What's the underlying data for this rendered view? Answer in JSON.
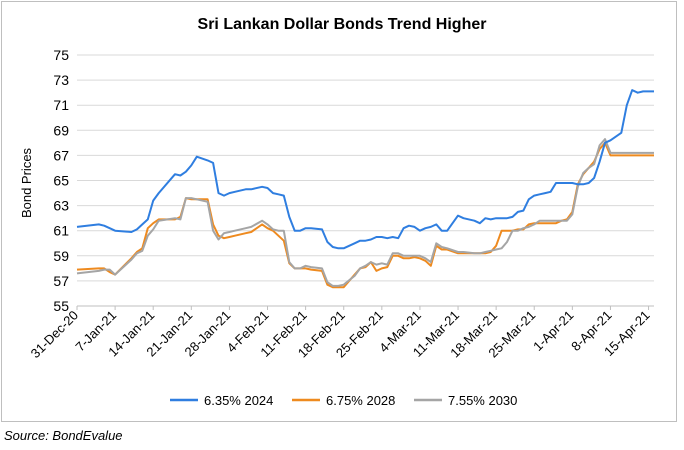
{
  "source_text": "Source: BondEvalue",
  "chart_data": {
    "type": "line",
    "title": "Sri Lankan Dollar Bonds Trend Higher",
    "xlabel": "",
    "ylabel": "Bond Prices",
    "ylim": [
      55,
      75
    ],
    "yticks": [
      55,
      57,
      59,
      61,
      63,
      65,
      67,
      69,
      71,
      73,
      75
    ],
    "categories": [
      "31-Dec-20",
      "7-Jan-21",
      "14-Jan-21",
      "21-Jan-21",
      "28-Jan-21",
      "4-Feb-21",
      "11-Feb-21",
      "18-Feb-21",
      "25-Feb-21",
      "4-Mar-21",
      "11-Mar-21",
      "18-Mar-21",
      "25-Mar-21",
      "1-Apr-21",
      "8-Apr-21",
      "15-Apr-21"
    ],
    "grid": true,
    "legend_position": "bottom",
    "series": [
      {
        "name": "6.35% 2024",
        "color": "#2f7ee0",
        "x": [
          0,
          4,
          5,
          6,
          7,
          10,
          11,
          12,
          13,
          14,
          15,
          18,
          19,
          20,
          21,
          22,
          24,
          25,
          26,
          27,
          28,
          29,
          31,
          32,
          34,
          35,
          36,
          37,
          38,
          39,
          40,
          41,
          42,
          43,
          45,
          46,
          47,
          48,
          49,
          51,
          52,
          53,
          54,
          55,
          56,
          57,
          58,
          59,
          60,
          61,
          62,
          63,
          64,
          65,
          66,
          67,
          68,
          70,
          71,
          73,
          74,
          75,
          76,
          77,
          78,
          79,
          80,
          81,
          82,
          83,
          84,
          85,
          86,
          87,
          88,
          89,
          90,
          91,
          92,
          93,
          94,
          95,
          96,
          97,
          98,
          100,
          101,
          102,
          103,
          104,
          105,
          106
        ],
        "values": [
          61.3,
          61.5,
          61.4,
          61.2,
          61.0,
          60.9,
          61.1,
          61.5,
          61.9,
          63.4,
          64.0,
          65.5,
          65.4,
          65.7,
          66.2,
          66.9,
          66.6,
          66.4,
          64.0,
          63.8,
          64.0,
          64.1,
          64.3,
          64.3,
          64.5,
          64.4,
          64.0,
          63.9,
          63.8,
          62.1,
          61.0,
          61.0,
          61.2,
          61.2,
          61.1,
          60.1,
          59.7,
          59.6,
          59.6,
          60.0,
          60.2,
          60.2,
          60.3,
          60.5,
          60.5,
          60.4,
          60.5,
          60.4,
          61.2,
          61.4,
          61.3,
          61.0,
          61.2,
          61.3,
          61.5,
          61.0,
          61.0,
          62.2,
          62.0,
          61.8,
          61.6,
          62.0,
          61.9,
          62.0,
          62.0,
          62.0,
          62.1,
          62.5,
          62.6,
          63.5,
          63.8,
          63.9,
          64.0,
          64.1,
          64.8,
          64.8,
          64.8,
          64.8,
          64.7,
          64.7,
          64.8,
          65.2,
          66.5,
          68.0,
          68.2,
          68.8,
          71.0,
          72.2,
          72.0,
          72.1,
          72.1,
          72.1
        ]
      },
      {
        "name": "6.75% 2028",
        "color": "#ee8a1f",
        "x": [
          0,
          4,
          5,
          6,
          7,
          10,
          11,
          12,
          13,
          14,
          15,
          18,
          19,
          20,
          21,
          22,
          24,
          25,
          26,
          27,
          28,
          29,
          31,
          32,
          34,
          35,
          36,
          37,
          38,
          39,
          40,
          41,
          42,
          43,
          45,
          46,
          47,
          48,
          49,
          51,
          52,
          53,
          54,
          55,
          56,
          57,
          58,
          59,
          60,
          61,
          62,
          63,
          64,
          65,
          66,
          67,
          68,
          70,
          71,
          73,
          74,
          75,
          76,
          77,
          78,
          79,
          80,
          81,
          82,
          83,
          84,
          85,
          86,
          87,
          88,
          89,
          90,
          91,
          92,
          93,
          94,
          95,
          96,
          97,
          98,
          100,
          101,
          102,
          103,
          104,
          105,
          106
        ],
        "values": [
          57.9,
          58.0,
          58.0,
          57.7,
          57.5,
          58.8,
          59.3,
          59.6,
          61.2,
          61.6,
          61.9,
          61.9,
          62.1,
          63.6,
          63.5,
          63.5,
          63.5,
          61.5,
          60.6,
          60.4,
          60.5,
          60.6,
          60.8,
          60.9,
          61.5,
          61.2,
          61.0,
          60.6,
          60.2,
          58.4,
          58.0,
          58.0,
          58.0,
          57.9,
          57.8,
          56.7,
          56.5,
          56.5,
          56.5,
          57.5,
          58.0,
          58.1,
          58.5,
          57.8,
          58.0,
          58.1,
          59.0,
          59.0,
          58.8,
          58.8,
          58.9,
          58.8,
          58.6,
          58.2,
          59.8,
          59.5,
          59.5,
          59.2,
          59.2,
          59.2,
          59.2,
          59.2,
          59.3,
          59.8,
          61.0,
          61.0,
          61.0,
          61.1,
          61.1,
          61.5,
          61.6,
          61.6,
          61.6,
          61.6,
          61.6,
          61.8,
          61.9,
          62.5,
          64.7,
          65.5,
          66.0,
          66.5,
          67.5,
          68.0,
          67.0,
          67.0,
          67.0,
          67.0,
          67.0,
          67.0,
          67.0,
          67.0
        ]
      },
      {
        "name": "7.55% 2030",
        "color": "#a5a5a5",
        "x": [
          0,
          4,
          5,
          6,
          7,
          10,
          11,
          12,
          13,
          14,
          15,
          18,
          19,
          20,
          21,
          22,
          24,
          25,
          26,
          27,
          28,
          29,
          31,
          32,
          34,
          35,
          36,
          37,
          38,
          39,
          40,
          41,
          42,
          43,
          45,
          46,
          47,
          48,
          49,
          51,
          52,
          53,
          54,
          55,
          56,
          57,
          58,
          59,
          60,
          61,
          62,
          63,
          64,
          65,
          66,
          67,
          68,
          70,
          71,
          73,
          74,
          75,
          76,
          77,
          78,
          79,
          80,
          81,
          82,
          83,
          84,
          85,
          86,
          87,
          88,
          89,
          90,
          91,
          92,
          93,
          94,
          95,
          96,
          97,
          98,
          100,
          101,
          102,
          103,
          104,
          105,
          106
        ],
        "values": [
          57.6,
          57.8,
          57.9,
          57.9,
          57.5,
          58.7,
          59.2,
          59.4,
          60.6,
          61.1,
          61.8,
          62.0,
          61.9,
          63.6,
          63.6,
          63.5,
          63.3,
          61.0,
          60.3,
          60.8,
          60.9,
          61.0,
          61.2,
          61.3,
          61.8,
          61.5,
          61.1,
          61.0,
          61.0,
          58.5,
          58.0,
          58.0,
          58.2,
          58.1,
          58.0,
          56.9,
          56.6,
          56.6,
          56.7,
          57.4,
          58.0,
          58.2,
          58.5,
          58.3,
          58.4,
          58.3,
          59.2,
          59.2,
          59.0,
          59.0,
          59.0,
          59.0,
          58.8,
          58.5,
          60.0,
          59.7,
          59.6,
          59.3,
          59.3,
          59.2,
          59.2,
          59.3,
          59.4,
          59.5,
          59.6,
          60.1,
          61.0,
          61.0,
          61.2,
          61.3,
          61.5,
          61.8,
          61.8,
          61.8,
          61.8,
          61.8,
          61.8,
          62.3,
          64.5,
          65.6,
          66.0,
          66.3,
          67.8,
          68.3,
          67.2,
          67.2,
          67.2,
          67.2,
          67.2,
          67.2,
          67.2,
          67.2
        ]
      }
    ]
  }
}
